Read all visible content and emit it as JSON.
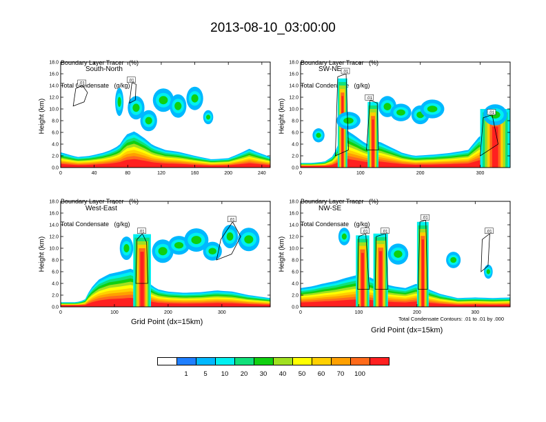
{
  "title": "2013-08-10_03:00:00",
  "panel_header": {
    "line1": "Boundary Layer Tracer   (%)",
    "line2": "Total Condensate   (g/kg)"
  },
  "y_axis_label": "Height (km)",
  "x_axis_label": "Grid Point (dx=15km)",
  "contour_note": "Total Condensate Contours: .01 to .01 by .000",
  "contour_label": ".01",
  "colorbar": {
    "colors": [
      "#ffffff",
      "#1f7fff",
      "#00b8ff",
      "#00f0f0",
      "#10e07a",
      "#10d010",
      "#a0e020",
      "#ffff00",
      "#ffd000",
      "#ffa000",
      "#ff6a1a",
      "#ff2020"
    ],
    "labels": [
      "1",
      "5",
      "10",
      "20",
      "30",
      "40",
      "50",
      "60",
      "70",
      "100"
    ]
  },
  "chart_data": [
    {
      "type": "heatmap",
      "panel_label": "South-North",
      "xlabel": "",
      "ylabel": "Height (km)",
      "xlim": [
        0,
        250
      ],
      "ylim": [
        0,
        18
      ],
      "xticks": [
        "0",
        "40",
        "80",
        "120",
        "160",
        "200",
        "240"
      ],
      "yticks": [
        "0.0",
        "2.0",
        "4.0",
        "6.0",
        "8.0",
        "10.0",
        "12.0",
        "14.0",
        "16.0",
        "18.0"
      ],
      "tracer_top_km": [
        [
          0,
          2.6
        ],
        [
          10,
          2.2
        ],
        [
          20,
          1.8
        ],
        [
          35,
          2.0
        ],
        [
          50,
          2.5
        ],
        [
          60,
          3.0
        ],
        [
          70,
          3.8
        ],
        [
          78,
          5.6
        ],
        [
          88,
          6.2
        ],
        [
          100,
          5.0
        ],
        [
          110,
          3.8
        ],
        [
          125,
          3.0
        ],
        [
          140,
          2.7
        ],
        [
          160,
          2.0
        ],
        [
          180,
          1.4
        ],
        [
          200,
          1.6
        ],
        [
          215,
          2.5
        ],
        [
          225,
          3.2
        ],
        [
          235,
          2.6
        ],
        [
          250,
          1.8
        ]
      ],
      "plumes": [
        [
          65,
          75,
          11.2,
          2.4
        ],
        [
          80,
          100,
          10.2,
          2.0
        ],
        [
          95,
          115,
          8.0,
          1.8
        ],
        [
          110,
          135,
          11.5,
          2.0
        ],
        [
          130,
          150,
          10.5,
          2.0
        ],
        [
          150,
          170,
          11.8,
          2.0
        ],
        [
          170,
          182,
          8.6,
          1.2
        ]
      ],
      "contours": [
        [
          [
            15,
            10.5
          ],
          [
            18,
            13.5
          ],
          [
            26,
            14.0
          ],
          [
            32,
            12.8
          ],
          [
            28,
            11.2
          ]
        ],
        [
          [
            82,
            11.0
          ],
          [
            85,
            14.5
          ],
          [
            90,
            14.2
          ],
          [
            89,
            11.5
          ]
        ]
      ]
    },
    {
      "type": "heatmap",
      "panel_label": "SW-NE",
      "xlabel": "",
      "ylabel": "Height (km)",
      "xlim": [
        0,
        350
      ],
      "ylim": [
        0,
        18
      ],
      "xticks": [
        "0",
        "100",
        "200",
        "300"
      ],
      "yticks": [
        "0.0",
        "2.0",
        "4.0",
        "6.0",
        "8.0",
        "10.0",
        "12.0",
        "14.0",
        "16.0",
        "18.0"
      ],
      "tracer_top_km": [
        [
          0,
          0.8
        ],
        [
          20,
          0.8
        ],
        [
          40,
          1.0
        ],
        [
          55,
          2.0
        ],
        [
          65,
          4.5
        ],
        [
          75,
          6.5
        ],
        [
          90,
          5.5
        ],
        [
          110,
          4.0
        ],
        [
          130,
          4.5
        ],
        [
          150,
          3.5
        ],
        [
          170,
          2.5
        ],
        [
          190,
          2.0
        ],
        [
          220,
          2.2
        ],
        [
          250,
          2.5
        ],
        [
          280,
          3.0
        ],
        [
          300,
          5.5
        ],
        [
          320,
          6.0
        ],
        [
          340,
          5.0
        ],
        [
          350,
          4.0
        ]
      ],
      "towers": [
        [
          62,
          78,
          15.2
        ],
        [
          112,
          130,
          11.2
        ],
        [
          300,
          350,
          10.0
        ]
      ],
      "plumes": [
        [
          20,
          40,
          5.5,
          1.2
        ],
        [
          60,
          100,
          8.0,
          1.5
        ],
        [
          130,
          160,
          10.4,
          1.8
        ],
        [
          150,
          185,
          9.4,
          1.5
        ],
        [
          185,
          215,
          9.0,
          1.6
        ],
        [
          200,
          240,
          10.0,
          1.6
        ],
        [
          305,
          345,
          9.0,
          1.8
        ]
      ],
      "contours": [
        [
          [
            58,
            2.0
          ],
          [
            62,
            15.5
          ],
          [
            76,
            16.0
          ],
          [
            80,
            3.0
          ]
        ],
        [
          [
            110,
            3.0
          ],
          [
            116,
            11.5
          ],
          [
            128,
            11.0
          ],
          [
            130,
            3.0
          ]
        ],
        [
          [
            300,
            2.0
          ],
          [
            305,
            8.5
          ],
          [
            320,
            9.0
          ],
          [
            330,
            4.0
          ]
        ]
      ]
    },
    {
      "type": "heatmap",
      "panel_label": "West-East",
      "xlabel": "Grid Point (dx=15km)",
      "ylabel": "Height (km)",
      "xlim": [
        0,
        390
      ],
      "ylim": [
        0,
        18
      ],
      "xticks": [
        "0",
        "100",
        "200",
        "300"
      ],
      "yticks": [
        "0.0",
        "2.0",
        "4.0",
        "6.0",
        "8.0",
        "10.0",
        "12.0",
        "14.0",
        "16.0",
        "18.0"
      ],
      "tracer_top_km": [
        [
          0,
          0.8
        ],
        [
          30,
          0.8
        ],
        [
          45,
          1.2
        ],
        [
          55,
          3.0
        ],
        [
          70,
          4.6
        ],
        [
          90,
          5.6
        ],
        [
          110,
          6.0
        ],
        [
          130,
          6.5
        ],
        [
          150,
          5.8
        ],
        [
          165,
          4.0
        ],
        [
          180,
          3.0
        ],
        [
          200,
          2.6
        ],
        [
          230,
          2.4
        ],
        [
          260,
          2.5
        ],
        [
          290,
          2.8
        ],
        [
          320,
          2.6
        ],
        [
          350,
          2.0
        ],
        [
          390,
          1.5
        ]
      ],
      "towers": [
        [
          135,
          168,
          12.4
        ]
      ],
      "plumes": [
        [
          110,
          135,
          10.0,
          2.0
        ],
        [
          170,
          210,
          9.5,
          2.0
        ],
        [
          200,
          240,
          10.5,
          1.6
        ],
        [
          230,
          275,
          11.4,
          2.0
        ],
        [
          265,
          300,
          9.5,
          1.6
        ],
        [
          300,
          330,
          12.0,
          2.0
        ],
        [
          330,
          370,
          11.5,
          2.0
        ]
      ],
      "contours": [
        [
          [
            140,
            4.0
          ],
          [
            142,
            11.5
          ],
          [
            152,
            12.5
          ],
          [
            160,
            11.0
          ],
          [
            162,
            4.0
          ]
        ],
        [
          [
            290,
            8.0
          ],
          [
            298,
            11.5
          ],
          [
            320,
            14.5
          ],
          [
            335,
            12.0
          ],
          [
            318,
            9.0
          ]
        ]
      ]
    },
    {
      "type": "heatmap",
      "panel_label": "NW-SE",
      "xlabel": "Grid Point (dx=15km)",
      "ylabel": "Height (km)",
      "xlim": [
        0,
        360
      ],
      "ylim": [
        0,
        18
      ],
      "xticks": [
        "0",
        "100",
        "200",
        "300"
      ],
      "yticks": [
        "0.0",
        "2.0",
        "4.0",
        "6.0",
        "8.0",
        "10.0",
        "12.0",
        "14.0",
        "16.0",
        "18.0"
      ],
      "tracer_top_km": [
        [
          0,
          3.2
        ],
        [
          20,
          3.5
        ],
        [
          40,
          4.0
        ],
        [
          60,
          4.4
        ],
        [
          80,
          5.0
        ],
        [
          100,
          5.5
        ],
        [
          120,
          5.0
        ],
        [
          140,
          4.0
        ],
        [
          160,
          3.5
        ],
        [
          180,
          3.2
        ],
        [
          200,
          4.0
        ],
        [
          220,
          3.0
        ],
        [
          240,
          2.2
        ],
        [
          270,
          1.5
        ],
        [
          300,
          1.6
        ],
        [
          330,
          1.5
        ],
        [
          360,
          1.6
        ]
      ],
      "towers": [
        [
          95,
          118,
          12.2
        ],
        [
          125,
          150,
          12.5
        ],
        [
          200,
          220,
          14.5
        ]
      ],
      "plumes": [
        [
          65,
          85,
          12.0,
          1.5
        ],
        [
          150,
          185,
          9.0,
          1.8
        ],
        [
          250,
          275,
          8.0,
          1.4
        ],
        [
          315,
          330,
          6.0,
          1.2
        ]
      ],
      "contours": [
        [
          [
            98,
            3.0
          ],
          [
            100,
            12.0
          ],
          [
            112,
            12.5
          ],
          [
            118,
            3.0
          ]
        ],
        [
          [
            128,
            3.0
          ],
          [
            130,
            12.0
          ],
          [
            146,
            12.5
          ],
          [
            150,
            3.0
          ]
        ],
        [
          [
            202,
            3.0
          ],
          [
            205,
            14.5
          ],
          [
            215,
            14.8
          ],
          [
            218,
            3.0
          ]
        ],
        [
          [
            310,
            6.0
          ],
          [
            312,
            11.5
          ],
          [
            325,
            12.5
          ],
          [
            322,
            7.0
          ]
        ]
      ]
    }
  ]
}
